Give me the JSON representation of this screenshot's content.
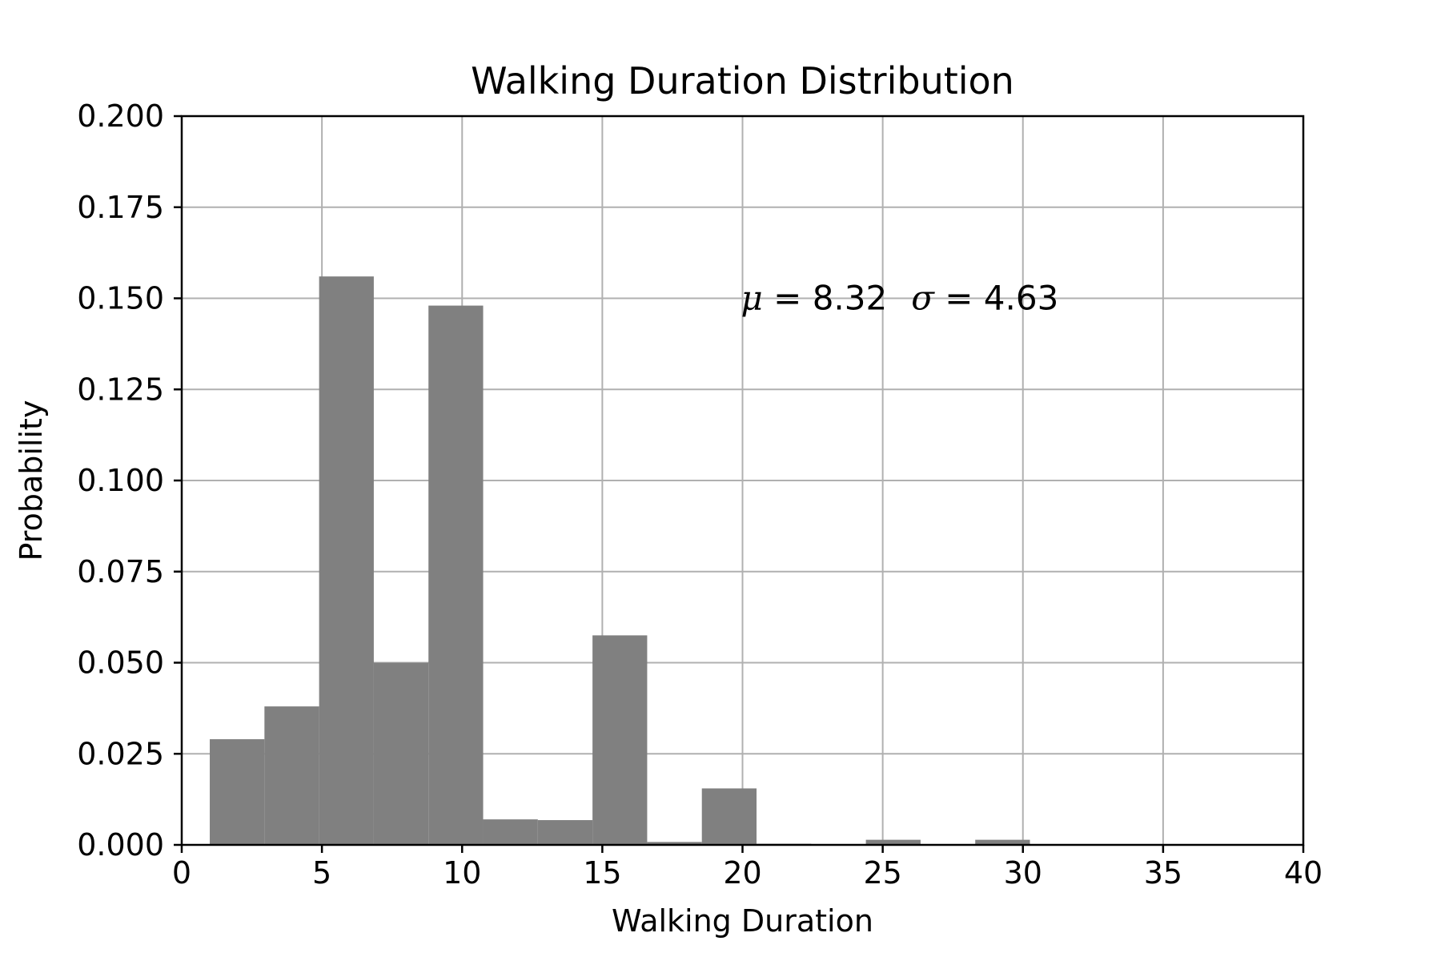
{
  "chart_data": {
    "type": "bar",
    "title": "Walking Duration Distribution",
    "xlabel": "Walking Duration",
    "ylabel": "Probability",
    "xlim": [
      0,
      40
    ],
    "ylim": [
      0,
      0.2
    ],
    "xticks": [
      0,
      5,
      10,
      15,
      20,
      25,
      30,
      35,
      40
    ],
    "xtick_labels": [
      "0",
      "5",
      "10",
      "15",
      "20",
      "25",
      "30",
      "35",
      "40"
    ],
    "yticks": [
      0,
      0.025,
      0.05,
      0.075,
      0.1,
      0.125,
      0.15,
      0.175,
      0.2
    ],
    "ytick_labels": [
      "0.000",
      "0.025",
      "0.050",
      "0.075",
      "0.100",
      "0.125",
      "0.150",
      "0.175",
      "0.200"
    ],
    "grid": true,
    "bar_color": "#808080",
    "bins": [
      {
        "x0": 1.0,
        "x1": 2.95,
        "value": 0.029
      },
      {
        "x0": 2.95,
        "x1": 4.9,
        "value": 0.038
      },
      {
        "x0": 4.9,
        "x1": 6.85,
        "value": 0.156
      },
      {
        "x0": 6.85,
        "x1": 8.8,
        "value": 0.05
      },
      {
        "x0": 8.8,
        "x1": 10.75,
        "value": 0.148
      },
      {
        "x0": 10.75,
        "x1": 12.7,
        "value": 0.007
      },
      {
        "x0": 12.7,
        "x1": 14.65,
        "value": 0.0068
      },
      {
        "x0": 14.65,
        "x1": 16.6,
        "value": 0.0575
      },
      {
        "x0": 16.6,
        "x1": 18.55,
        "value": 0.0008
      },
      {
        "x0": 18.55,
        "x1": 20.5,
        "value": 0.0155
      },
      {
        "x0": 20.5,
        "x1": 22.45,
        "value": 0.0003
      },
      {
        "x0": 22.45,
        "x1": 24.4,
        "value": 0.0
      },
      {
        "x0": 24.4,
        "x1": 26.35,
        "value": 0.0014
      },
      {
        "x0": 26.35,
        "x1": 28.3,
        "value": 0.0
      },
      {
        "x0": 28.3,
        "x1": 30.25,
        "value": 0.0014
      }
    ],
    "annotation": {
      "mu_symbol": "μ",
      "mu_text": " = 8.32",
      "sigma_symbol": "σ",
      "sigma_text": " = 4.63",
      "x": 20,
      "y": 0.15
    }
  }
}
